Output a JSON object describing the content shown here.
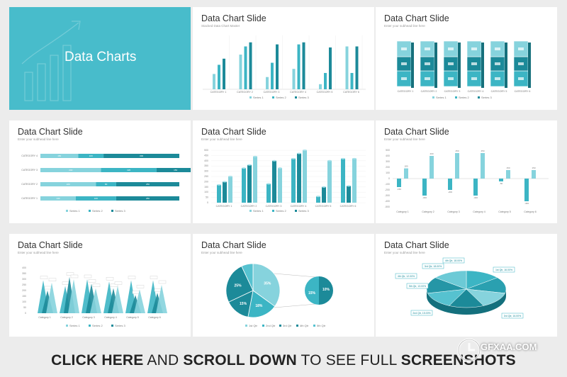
{
  "cover": {
    "title": "Data Charts"
  },
  "footer": {
    "p1": "CLICK HERE",
    "p2": " AND ",
    "p3": "SCROLL DOWN",
    "p4": " TO SEE FULL ",
    "p5": "SCREENSHOTS"
  },
  "watermark": {
    "text": "GFXAA.COM"
  },
  "slides": [
    {
      "title": "Data Chart Slide",
      "subtitle": "Stacked Data Chart Master"
    },
    {
      "title": "Data Chart Slide",
      "subtitle": "Enter your subhead line here"
    },
    {
      "title": "Data Chart Slide",
      "subtitle": "Enter your subhead line here"
    },
    {
      "title": "Data Chart Slide",
      "subtitle": "Enter your subhead line here"
    },
    {
      "title": "Data Chart Slide",
      "subtitle": "Enter your subhead line here"
    },
    {
      "title": "Data Chart Slide",
      "subtitle": "Enter your subhead line here"
    },
    {
      "title": "Data Chart Slide",
      "subtitle": "Enter your subhead line here"
    },
    {
      "title": "Data Chart Slide",
      "subtitle": "Enter your subhead line here"
    }
  ],
  "colors": {
    "teal_light": "#86d3dd",
    "teal": "#3cb5c4",
    "teal_dark": "#1c8a99",
    "cover_bg": "#48bccb"
  },
  "chart_data": [
    {
      "type": "bar",
      "categories": [
        "CATEGORY 1",
        "CATEGORY 2",
        "CATEGORY 3",
        "CATEGORY 4",
        "CATEGORY 5",
        "CATEGORY 6"
      ],
      "series": [
        {
          "name": "Series 1",
          "values": [
            15,
            34,
            12,
            20,
            5,
            42
          ]
        },
        {
          "name": "Series 2",
          "values": [
            24,
            42,
            26,
            44,
            16,
            16
          ]
        },
        {
          "name": "Series 3",
          "values": [
            30,
            46,
            44,
            46,
            41,
            42
          ]
        }
      ]
    },
    {
      "type": "bar",
      "categories": [
        "CATEGORY 1",
        "CATEGORY 2",
        "CATEGORY 3",
        "CATEGORY 4",
        "CATEGORY 5",
        "CATEGORY 6"
      ],
      "series": [
        {
          "name": "Series 1",
          "values": [
            330,
            330,
            330,
            330,
            330,
            330
          ]
        },
        {
          "name": "Series 2",
          "values": [
            300,
            300,
            300,
            300,
            300,
            300
          ]
        },
        {
          "name": "Series 3",
          "values": [
            300,
            300,
            300,
            300,
            300,
            300
          ]
        }
      ]
    },
    {
      "type": "bar",
      "categories": [
        "CATEGORY 4",
        "CATEGORY 3",
        "CATEGORY 2",
        "CATEGORY 1"
      ],
      "series": [
        {
          "name": "Series 1",
          "values": [
            150,
            240,
            220,
            140
          ]
        },
        {
          "name": "Series 2",
          "values": [
            100,
            220,
            80,
            160
          ]
        },
        {
          "name": "Series 3",
          "values": [
            300,
            150,
            250,
            250
          ]
        }
      ]
    },
    {
      "type": "bar",
      "categories": [
        "CATEGORY 1",
        "CATEGORY 2",
        "CATEGORY 3",
        "CATEGORY 4",
        "CATEGORY 5",
        "CATEGORY 6"
      ],
      "ylim": [
        0,
        500
      ],
      "yticks": [
        "0",
        "50",
        "100",
        "150",
        "200",
        "250",
        "300",
        "350",
        "400",
        "450",
        "500"
      ],
      "series": [
        {
          "name": "Series 1",
          "values": [
            170,
            330,
            180,
            420,
            60,
            420
          ]
        },
        {
          "name": "Series 2",
          "values": [
            200,
            360,
            400,
            470,
            150,
            160
          ]
        },
        {
          "name": "Series 3",
          "values": [
            250,
            440,
            330,
            510,
            400,
            420
          ]
        }
      ]
    },
    {
      "type": "bar",
      "categories": [
        "Category 1",
        "Category 2",
        "Category 3",
        "Category 4",
        "Category 5",
        "Category 6"
      ],
      "ylim": [
        -500,
        500
      ],
      "yticks": [
        "500",
        "400",
        "300",
        "200",
        "100",
        "0",
        "-100",
        "-200",
        "-300",
        "-400",
        "-500"
      ],
      "series": [
        {
          "name": "Series 1",
          "values": [
            -150,
            -300,
            -200,
            -300,
            -50,
            -400
          ]
        },
        {
          "name": "Series 2",
          "values": [
            180,
            400,
            450,
            450,
            150,
            150
          ]
        }
      ],
      "labels": [
        "-150",
        "180",
        "-300",
        "400",
        "-200",
        "450",
        "-300",
        "450",
        "-50",
        "150",
        "-400",
        "150"
      ]
    },
    {
      "type": "bar",
      "categories": [
        "Category 1",
        "Category 2",
        "Category 3",
        "Category 4",
        "Category 5",
        "Category 6"
      ],
      "ylim": [
        0,
        400
      ],
      "yticks": [
        "0",
        "50",
        "100",
        "150",
        "200",
        "250",
        "300",
        "350",
        "400"
      ],
      "series": [
        {
          "name": "Series 1",
          "values": [
            290,
            240,
            300,
            280,
            290,
            290
          ]
        },
        {
          "name": "Series 2",
          "values": [
            200,
            320,
            260,
            220,
            160,
            180
          ]
        },
        {
          "name": "Series 3",
          "values": [
            270,
            300,
            220,
            240,
            210,
            250
          ]
        }
      ]
    },
    {
      "type": "pie",
      "slices": [
        {
          "name": "1st Qtr",
          "value": 35,
          "label": "35%"
        },
        {
          "name": "2nd Qtr",
          "value": 18,
          "label": "18%"
        },
        {
          "name": "3rd Qtr",
          "value": 15,
          "label": "15%"
        },
        {
          "name": "4th Qtr",
          "value": 25,
          "label": "25%"
        },
        {
          "name": "5th Qtr",
          "value": 7,
          "label": ""
        }
      ],
      "subslices": [
        "15%",
        "10%"
      ]
    },
    {
      "type": "pie",
      "callouts": [
        "3rd Qtr, 18.00%",
        "4th Qtr, 18.00%",
        "1st Qtr, 16.00%",
        "5th Qtr, 13.00%",
        "2nd Qtr, 15.00%",
        "3rd Qtr, 16.00%",
        "4th Qtr, 12.00%"
      ]
    }
  ]
}
